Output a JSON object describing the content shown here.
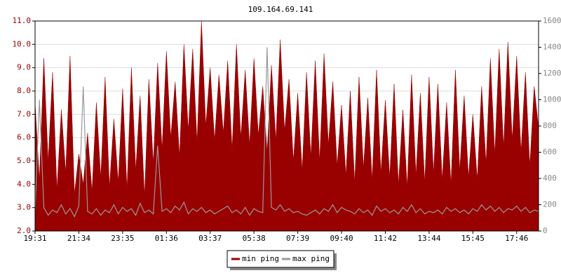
{
  "chart_data": {
    "type": "area-line",
    "title": "109.164.69.141",
    "categories": [
      "19:31",
      null,
      null,
      null,
      null,
      null,
      null,
      null,
      null,
      null,
      "21:34",
      null,
      null,
      null,
      null,
      null,
      null,
      null,
      null,
      null,
      "23:35",
      null,
      null,
      null,
      null,
      null,
      null,
      null,
      null,
      null,
      "01:36",
      null,
      null,
      null,
      null,
      null,
      null,
      null,
      null,
      null,
      "03:37",
      null,
      null,
      null,
      null,
      null,
      null,
      null,
      null,
      null,
      "05:38",
      null,
      null,
      null,
      null,
      null,
      null,
      null,
      null,
      null,
      "07:39",
      null,
      null,
      null,
      null,
      null,
      null,
      null,
      null,
      null,
      "09:40",
      null,
      null,
      null,
      null,
      null,
      null,
      null,
      null,
      null,
      "11:42",
      null,
      null,
      null,
      null,
      null,
      null,
      null,
      null,
      null,
      "13:44",
      null,
      null,
      null,
      null,
      null,
      null,
      null,
      null,
      null,
      "15:45",
      null,
      null,
      null,
      null,
      null,
      null,
      null,
      null,
      null,
      "17:46",
      null,
      null,
      null,
      null,
      null
    ],
    "series": [
      {
        "name": "min ping",
        "color": "#990000",
        "axis": "y",
        "values": [
          7.5,
          4.2,
          9.4,
          5.0,
          8.8,
          3.8,
          7.2,
          4.5,
          9.5,
          3.6,
          5.3,
          4.0,
          6.2,
          3.7,
          7.5,
          4.3,
          8.6,
          3.9,
          6.8,
          4.1,
          8.1,
          3.8,
          9.0,
          4.6,
          7.8,
          3.5,
          8.5,
          4.9,
          9.2,
          5.5,
          9.7,
          6.0,
          8.4,
          5.2,
          10.0,
          6.3,
          9.8,
          5.8,
          11.0,
          6.5,
          9.0,
          5.9,
          8.7,
          6.2,
          9.3,
          5.5,
          10.0,
          6.0,
          8.9,
          5.7,
          9.4,
          6.1,
          8.2,
          5.4,
          9.1,
          5.9,
          10.2,
          6.3,
          8.5,
          5.0,
          7.9,
          4.6,
          8.8,
          5.2,
          9.3,
          5.0,
          9.6,
          5.7,
          8.4,
          4.8,
          7.4,
          4.4,
          8.0,
          4.1,
          8.6,
          4.7,
          7.7,
          4.2,
          8.9,
          4.5,
          7.6,
          4.3,
          8.3,
          4.0,
          7.2,
          3.9,
          8.7,
          4.4,
          7.9,
          4.1,
          8.6,
          4.5,
          8.3,
          4.2,
          7.5,
          4.0,
          8.9,
          4.6,
          7.8,
          4.3,
          7.0,
          4.2,
          8.2,
          4.9,
          9.4,
          5.3,
          9.8,
          5.6,
          10.1,
          5.9,
          9.5,
          5.4,
          8.8,
          4.8,
          8.2,
          6.4
        ]
      },
      {
        "name": "max ping",
        "color": "#999999",
        "axis": "y2",
        "values": [
          150,
          1000,
          180,
          120,
          160,
          140,
          200,
          130,
          170,
          110,
          190,
          1100,
          150,
          130,
          170,
          120,
          160,
          140,
          200,
          130,
          180,
          150,
          170,
          120,
          210,
          140,
          160,
          130,
          650,
          150,
          170,
          140,
          190,
          160,
          220,
          130,
          170,
          150,
          180,
          140,
          160,
          130,
          150,
          170,
          190,
          140,
          160,
          130,
          180,
          120,
          170,
          150,
          140,
          1400,
          180,
          160,
          200,
          150,
          170,
          140,
          150,
          130,
          120,
          140,
          160,
          130,
          170,
          150,
          200,
          140,
          180,
          160,
          150,
          130,
          170,
          140,
          160,
          120,
          190,
          150,
          170,
          140,
          160,
          130,
          180,
          150,
          200,
          140,
          170,
          130,
          150,
          140,
          160,
          130,
          180,
          150,
          170,
          140,
          160,
          130,
          170,
          150,
          200,
          160,
          190,
          150,
          180,
          140,
          170,
          160,
          190,
          150,
          180,
          140,
          160,
          150
        ]
      }
    ],
    "ylim": [
      2,
      11
    ],
    "yticks": [
      {
        "value": 2,
        "label": "2.0"
      },
      {
        "value": 3,
        "label": "3.0"
      },
      {
        "value": 4,
        "label": "4.0"
      },
      {
        "value": 5,
        "label": "5.0"
      },
      {
        "value": 6,
        "label": "6.0"
      },
      {
        "value": 7,
        "label": "7.0"
      },
      {
        "value": 8,
        "label": "8.0"
      },
      {
        "value": 9,
        "label": "9.0"
      },
      {
        "value": 10,
        "label": "10.0"
      },
      {
        "value": 11,
        "label": "11.0"
      }
    ],
    "y2lim": [
      0,
      1600
    ],
    "y2ticks": [
      0,
      200,
      400,
      600,
      800,
      1000,
      1200,
      1400,
      1600
    ],
    "grid": true,
    "legend": "bottom"
  }
}
